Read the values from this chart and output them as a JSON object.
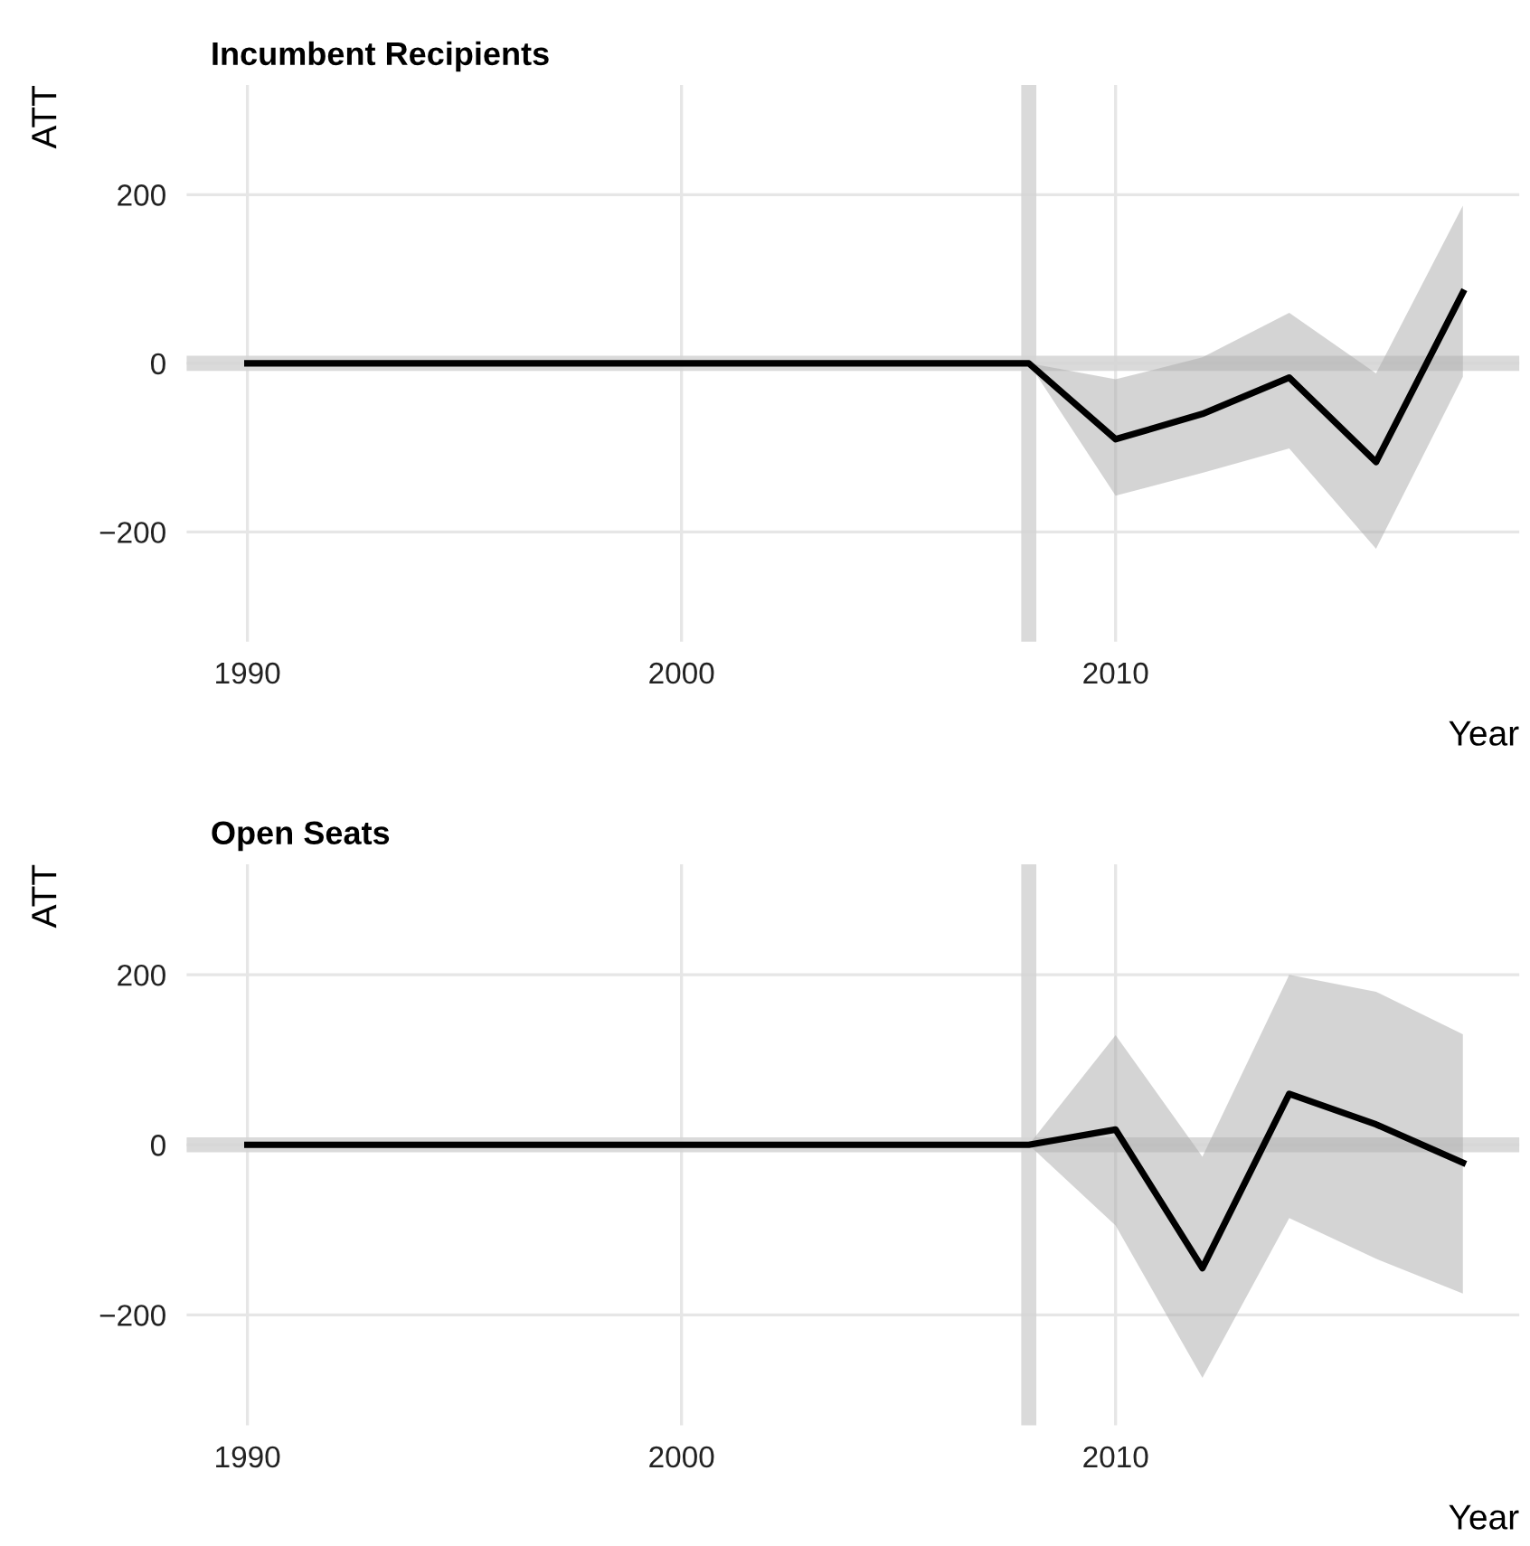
{
  "chart_data": [
    {
      "type": "line",
      "title": "Incumbent Recipients",
      "xlabel": "Year",
      "ylabel": "ATT",
      "x": [
        1990,
        1992,
        1994,
        1996,
        1998,
        2000,
        2002,
        2004,
        2006,
        2008,
        2010,
        2012,
        2014,
        2016,
        2018
      ],
      "series": [
        {
          "color": "#000000",
          "values": [
            0,
            0,
            0,
            0,
            0,
            0,
            0,
            0,
            0,
            0,
            -90,
            -60,
            -17,
            -117,
            84
          ],
          "lower": [
            0,
            0,
            0,
            0,
            0,
            0,
            0,
            0,
            0,
            0,
            -157,
            -130,
            -101,
            -220,
            -16
          ],
          "upper": [
            0,
            0,
            0,
            0,
            0,
            0,
            0,
            0,
            0,
            0,
            -19,
            7,
            60,
            -12,
            187
          ]
        }
      ],
      "xlim": [
        1988.6,
        2019.3
      ],
      "xticks": [
        1990,
        2000,
        2010
      ],
      "ylim": [
        -330,
        330
      ],
      "yticks": [
        {
          "value": -200,
          "label": "−200"
        },
        0,
        200
      ],
      "ref_lines": [
        {
          "axis": "x",
          "value": 2008,
          "color": "#d3d3d3"
        },
        {
          "axis": "y",
          "value": 0,
          "color": "#d3d3d3"
        }
      ],
      "grid": true,
      "legend": false,
      "line_style": "solid",
      "marker": "none"
    },
    {
      "type": "line",
      "title": "Open Seats",
      "xlabel": "Year",
      "ylabel": "ATT",
      "x": [
        1990,
        1992,
        1994,
        1996,
        1998,
        2000,
        2002,
        2004,
        2006,
        2008,
        2010,
        2012,
        2014,
        2016,
        2018
      ],
      "series": [
        {
          "color": "#000000",
          "values": [
            0,
            0,
            0,
            0,
            0,
            0,
            0,
            0,
            0,
            0,
            18,
            -145,
            60,
            24,
            -21
          ],
          "lower": [
            0,
            0,
            0,
            0,
            0,
            0,
            0,
            0,
            0,
            0,
            -95,
            -274,
            -86,
            -134,
            -175
          ],
          "upper": [
            0,
            0,
            0,
            0,
            0,
            0,
            0,
            0,
            0,
            0,
            129,
            -14,
            200,
            180,
            130
          ]
        }
      ],
      "xlim": [
        1988.6,
        2019.3
      ],
      "xticks": [
        1990,
        2000,
        2010
      ],
      "ylim": [
        -330,
        330
      ],
      "yticks": [
        {
          "value": -200,
          "label": "−200"
        },
        0,
        200
      ],
      "ref_lines": [
        {
          "axis": "x",
          "value": 2008,
          "color": "#d3d3d3"
        },
        {
          "axis": "y",
          "value": 0,
          "color": "#d3d3d3"
        }
      ],
      "grid": true,
      "legend": false,
      "line_style": "solid",
      "marker": "none"
    }
  ]
}
